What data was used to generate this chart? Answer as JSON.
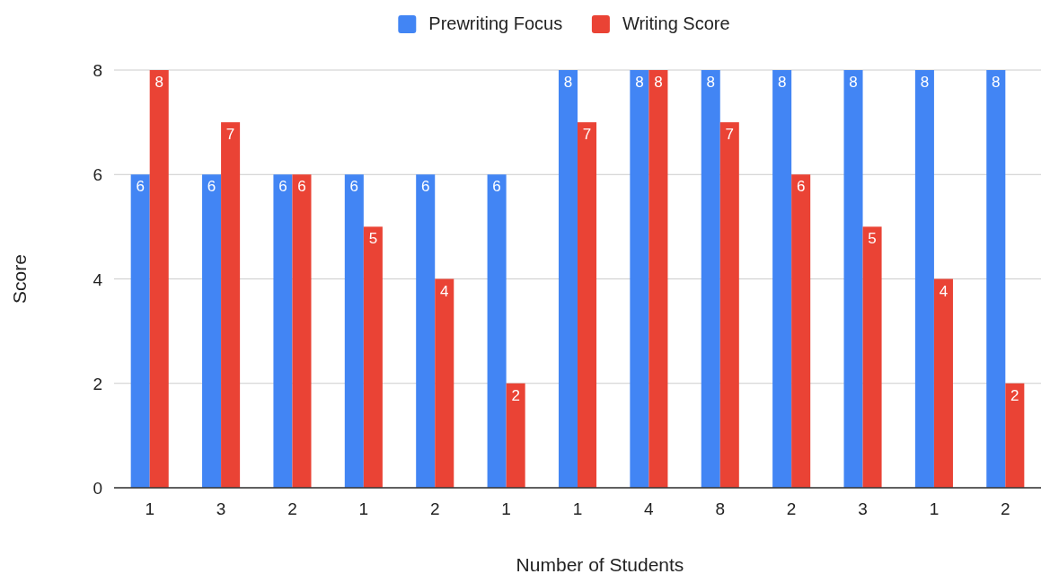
{
  "chart_data": {
    "type": "bar",
    "xlabel": "Number of Students",
    "ylabel": "Score",
    "categories": [
      "1",
      "3",
      "2",
      "1",
      "2",
      "1",
      "1",
      "4",
      "8",
      "2",
      "3",
      "1",
      "2"
    ],
    "series": [
      {
        "name": "Prewriting Focus",
        "color": "#4285f4",
        "values": [
          6,
          6,
          6,
          6,
          6,
          6,
          8,
          8,
          8,
          8,
          8,
          8,
          8
        ]
      },
      {
        "name": "Writing Score",
        "color": "#ea4335",
        "values": [
          8,
          7,
          6,
          5,
          4,
          2,
          7,
          8,
          7,
          6,
          5,
          4,
          2
        ]
      }
    ],
    "ylim": [
      0,
      8
    ],
    "yticks": [
      0,
      2,
      4,
      6,
      8
    ],
    "grid": "y",
    "legend": "top",
    "data_labels": true
  }
}
